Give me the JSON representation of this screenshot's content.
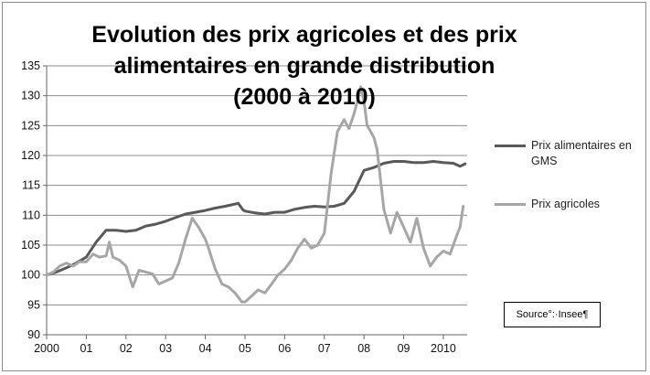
{
  "chart_data": {
    "type": "line",
    "title": [
      "Evolution des prix agricoles et des prix",
      "alimentaires en grande distribution",
      "(2000 à 2010)"
    ],
    "xlabel": "",
    "ylabel": "",
    "ylim": [
      90,
      135
    ],
    "yticks": [
      90,
      95,
      100,
      105,
      110,
      115,
      120,
      125,
      130,
      135
    ],
    "xlim": [
      2000,
      2010.6
    ],
    "xticks": [
      {
        "value": 2000,
        "label": "2000"
      },
      {
        "value": 2001,
        "label": "01"
      },
      {
        "value": 2002,
        "label": "02"
      },
      {
        "value": 2003,
        "label": "03"
      },
      {
        "value": 2004,
        "label": "04"
      },
      {
        "value": 2005,
        "label": "05"
      },
      {
        "value": 2006,
        "label": "06"
      },
      {
        "value": 2007,
        "label": "07"
      },
      {
        "value": 2008,
        "label": "08"
      },
      {
        "value": 2009,
        "label": "09"
      },
      {
        "value": 2010,
        "label": "2010"
      }
    ],
    "grid": true,
    "legend_position": "right",
    "series": [
      {
        "name": "Prix alimentaires en GMS",
        "color": "#595959",
        "x": [
          2000,
          2000.25,
          2000.5,
          2000.75,
          2001,
          2001.25,
          2001.5,
          2001.75,
          2002,
          2002.25,
          2002.5,
          2002.75,
          2003,
          2003.25,
          2003.5,
          2003.75,
          2004,
          2004.25,
          2004.5,
          2004.83,
          2004.95,
          2005,
          2005.25,
          2005.5,
          2005.75,
          2006,
          2006.25,
          2006.5,
          2006.75,
          2007,
          2007.25,
          2007.5,
          2007.75,
          2008,
          2008.25,
          2008.5,
          2008.75,
          2009,
          2009.25,
          2009.5,
          2009.75,
          2010,
          2010.25,
          2010.42,
          2010.55
        ],
        "values": [
          100,
          100.5,
          101.2,
          102,
          103,
          105.5,
          107.5,
          107.5,
          107.3,
          107.5,
          108.2,
          108.5,
          109,
          109.6,
          110.2,
          110.5,
          110.8,
          111.2,
          111.5,
          112,
          110.9,
          110.7,
          110.4,
          110.2,
          110.5,
          110.5,
          111,
          111.3,
          111.5,
          111.4,
          111.5,
          112,
          114,
          117.5,
          118,
          118.7,
          119,
          119,
          118.8,
          118.8,
          119,
          118.8,
          118.7,
          118.2,
          118.6
        ]
      },
      {
        "name": "Prix agricoles",
        "color": "#a6a6a6",
        "x": [
          2000,
          2000.17,
          2000.33,
          2000.5,
          2000.67,
          2000.83,
          2001,
          2001.17,
          2001.33,
          2001.5,
          2001.58,
          2001.67,
          2001.83,
          2002,
          2002.17,
          2002.33,
          2002.5,
          2002.67,
          2002.83,
          2003,
          2003.17,
          2003.33,
          2003.5,
          2003.67,
          2003.83,
          2004,
          2004.08,
          2004.25,
          2004.42,
          2004.58,
          2004.75,
          2004.92,
          2005,
          2005.17,
          2005.33,
          2005.5,
          2005.67,
          2005.83,
          2006,
          2006.17,
          2006.33,
          2006.5,
          2006.67,
          2006.83,
          2007,
          2007.17,
          2007.33,
          2007.5,
          2007.62,
          2007.75,
          2007.83,
          2007.92,
          2008,
          2008.08,
          2008.17,
          2008.25,
          2008.33,
          2008.5,
          2008.67,
          2008.83,
          2009,
          2009.17,
          2009.33,
          2009.5,
          2009.67,
          2009.83,
          2010,
          2010.17,
          2010.33,
          2010.42,
          2010.5
        ],
        "values": [
          100,
          100.5,
          101.5,
          102,
          101.5,
          102.2,
          102.2,
          103.5,
          103,
          103.2,
          105.5,
          103,
          102.5,
          101.5,
          98,
          100.8,
          100.5,
          100.2,
          98.5,
          99,
          99.5,
          102,
          106,
          109.5,
          108,
          106,
          104.5,
          101,
          98.5,
          98,
          97,
          95.5,
          95.5,
          96.5,
          97.5,
          97,
          98.5,
          100,
          101,
          102.5,
          104.5,
          106,
          104.5,
          105,
          107,
          117,
          124,
          126,
          124.5,
          127,
          129,
          131.5,
          129,
          125,
          124,
          123,
          121,
          111,
          107,
          110.5,
          108,
          105.5,
          109.5,
          104.5,
          101.5,
          103,
          104,
          103.5,
          106.5,
          108,
          111.5
        ]
      }
    ]
  },
  "legend": {
    "items": [
      {
        "label": "Prix alimentaires en GMS",
        "color": "#595959"
      },
      {
        "label": "Prix agricoles",
        "color": "#a6a6a6"
      }
    ]
  },
  "source_note": "Source°:·Insee¶"
}
